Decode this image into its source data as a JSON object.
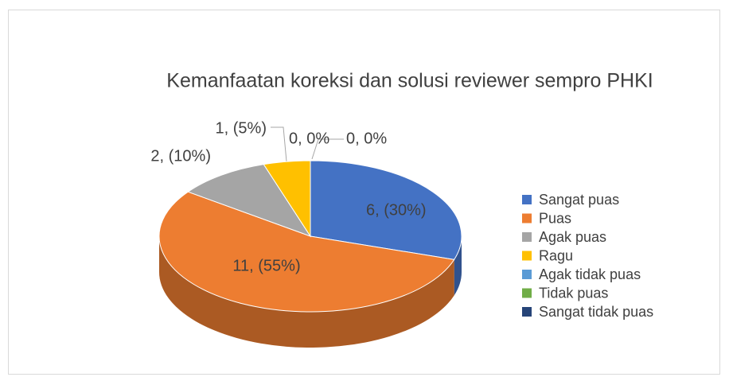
{
  "chart_data": {
    "type": "pie",
    "title": "Kemanfaatan koreksi dan solusi reviewer sempro PHKI",
    "categories": [
      "Sangat puas",
      "Puas",
      "Agak puas",
      "Ragu",
      "Agak tidak puas",
      "Tidak puas",
      "Sangat tidak puas"
    ],
    "values": [
      6,
      11,
      2,
      1,
      0,
      0,
      0
    ],
    "value_labels": [
      "6, (30%)",
      "11, (55%)",
      "2, (10%)",
      "1, (5%)",
      "0, 0%",
      "0, 0%",
      null
    ],
    "colors": [
      "#4472c4",
      "#ed7d31",
      "#a5a5a5",
      "#ffc000",
      "#5b9bd5",
      "#70ad47",
      "#264478"
    ],
    "legend": "right"
  }
}
